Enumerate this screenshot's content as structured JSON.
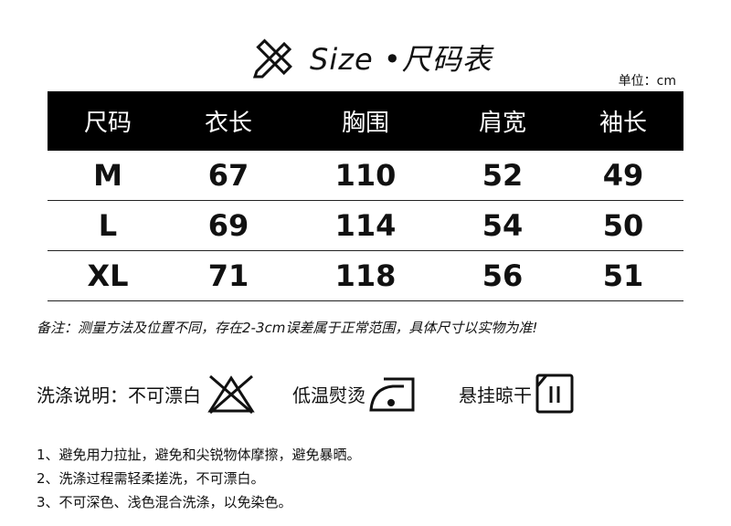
{
  "header": {
    "title": "Size •尺码表",
    "unit": "单位：cm",
    "icon": "ruler-pencil-icon"
  },
  "table": {
    "columns": [
      "尺码",
      "衣长",
      "胸围",
      "肩宽",
      "袖长"
    ],
    "rows": [
      [
        "M",
        "67",
        "110",
        "52",
        "49"
      ],
      [
        "L",
        "69",
        "114",
        "54",
        "50"
      ],
      [
        "XL",
        "71",
        "118",
        "56",
        "51"
      ]
    ]
  },
  "note": "备注：测量方法及位置不同，存在2-3cm误差属于正常范围，具体尺寸以实物为准!",
  "care": {
    "label": "洗涤说明：",
    "items": [
      {
        "text": "不可漂白",
        "icon": "no-bleach-icon"
      },
      {
        "text": "低温熨烫",
        "icon": "low-iron-icon"
      },
      {
        "text": "悬挂晾干",
        "icon": "hang-dry-icon"
      }
    ]
  },
  "instructions": [
    "1、避免用力拉扯，避免和尖锐物体摩擦，避免暴晒。",
    "2、洗涤过程需轻柔搓洗，不可漂白。",
    "3、不可深色、浅色混合洗涤，以免染色。"
  ]
}
